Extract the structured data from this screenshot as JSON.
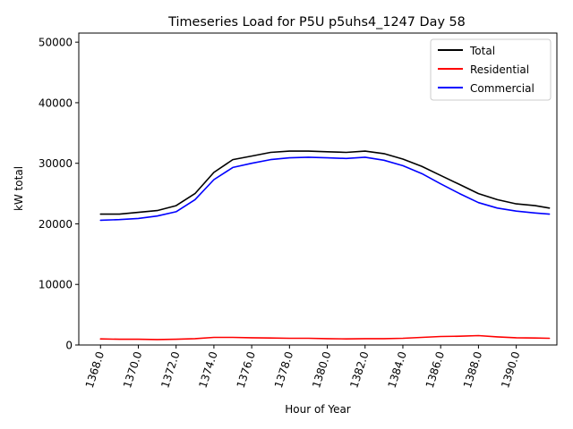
{
  "chart_data": {
    "type": "line",
    "title": "Timeseries Load for P5U p5uhs4_1247  Day 58",
    "xlabel": "Hour of Year",
    "ylabel": "kW total",
    "xlim": [
      1366.85,
      1392.15
    ],
    "ylim": [
      0,
      51500
    ],
    "xticks": [
      1368.0,
      1370.0,
      1372.0,
      1374.0,
      1376.0,
      1378.0,
      1380.0,
      1382.0,
      1384.0,
      1386.0,
      1388.0,
      1390.0
    ],
    "xtick_labels": [
      "1368.0",
      "1370.0",
      "1372.0",
      "1374.0",
      "1376.0",
      "1378.0",
      "1380.0",
      "1382.0",
      "1384.0",
      "1386.0",
      "1388.0",
      "1390.0"
    ],
    "yticks": [
      0,
      10000,
      20000,
      30000,
      40000,
      50000
    ],
    "ytick_labels": [
      "0",
      "10000",
      "20000",
      "30000",
      "40000",
      "50000"
    ],
    "legend_position": "top-right",
    "x": [
      1368.0,
      1369.0,
      1370.0,
      1371.0,
      1372.0,
      1373.0,
      1374.0,
      1375.0,
      1376.0,
      1377.0,
      1378.0,
      1379.0,
      1380.0,
      1381.0,
      1382.0,
      1383.0,
      1384.0,
      1385.0,
      1386.0,
      1387.0,
      1388.0,
      1389.0,
      1390.0,
      1391.0,
      1391.75
    ],
    "series": [
      {
        "name": "Total",
        "color": "#000000",
        "values": [
          21600,
          21600,
          21900,
          22200,
          23000,
          25000,
          28500,
          30600,
          31200,
          31800,
          32000,
          32000,
          31900,
          31800,
          32000,
          31600,
          30700,
          29500,
          28000,
          26500,
          25000,
          24000,
          23300,
          23000,
          22600
        ]
      },
      {
        "name": "Residential",
        "color": "#ff0000",
        "values": [
          1000,
          950,
          950,
          900,
          950,
          1050,
          1250,
          1250,
          1200,
          1150,
          1100,
          1100,
          1050,
          1000,
          1050,
          1050,
          1100,
          1250,
          1400,
          1450,
          1550,
          1350,
          1200,
          1150,
          1100
        ]
      },
      {
        "name": "Commercial",
        "color": "#0000ff",
        "values": [
          20600,
          20700,
          20900,
          21300,
          22000,
          24000,
          27300,
          29300,
          30000,
          30600,
          30900,
          31000,
          30900,
          30800,
          31000,
          30500,
          29600,
          28300,
          26600,
          25000,
          23500,
          22600,
          22100,
          21800,
          21600
        ]
      }
    ]
  }
}
